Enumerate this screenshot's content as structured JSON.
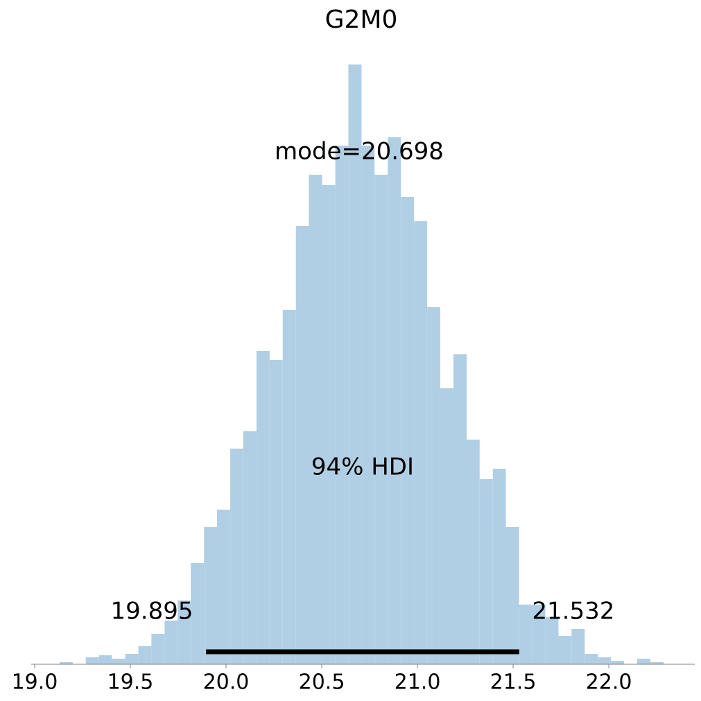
{
  "chart_data": {
    "type": "histogram",
    "title": "G2M0",
    "bins": [
      19.13,
      19.199,
      19.267,
      19.336,
      19.404,
      19.473,
      19.542,
      19.61,
      19.679,
      19.747,
      19.816,
      19.885,
      19.953,
      20.022,
      20.09,
      20.159,
      20.228,
      20.296,
      20.365,
      20.433,
      20.502,
      20.571,
      20.639,
      20.708,
      20.776,
      20.845,
      20.914,
      20.982,
      21.051,
      21.119,
      21.188,
      21.257,
      21.325,
      21.394,
      21.462,
      21.531,
      21.6,
      21.668,
      21.737,
      21.805,
      21.874,
      21.943,
      22.011,
      22.08,
      22.148,
      22.217,
      22.286
    ],
    "counts": [
      3,
      0,
      10,
      13,
      8,
      15,
      26,
      44,
      63,
      92,
      146,
      198,
      223,
      311,
      336,
      452,
      439,
      511,
      632,
      706,
      691,
      748,
      865,
      748,
      706,
      760,
      674,
      639,
      515,
      398,
      447,
      324,
      267,
      282,
      198,
      86,
      86,
      68,
      41,
      51,
      15,
      10,
      5,
      0,
      8,
      3
    ],
    "color": "#b1cfe4",
    "xlim": [
      18.982,
      22.449
    ],
    "ylim": [
      0,
      900
    ],
    "xticks": [
      {
        "value": 19.0,
        "label": "19.0"
      },
      {
        "value": 19.5,
        "label": "19.5"
      },
      {
        "value": 20.0,
        "label": "20.0"
      },
      {
        "value": 20.5,
        "label": "20.5"
      },
      {
        "value": 21.0,
        "label": "21.0"
      },
      {
        "value": 21.5,
        "label": "21.5"
      },
      {
        "value": 22.0,
        "label": "22.0"
      }
    ],
    "hdi": [
      19.895,
      21.532
    ],
    "hdi_label": "94% HDI",
    "point_estimate_label": "mode=20.698"
  }
}
